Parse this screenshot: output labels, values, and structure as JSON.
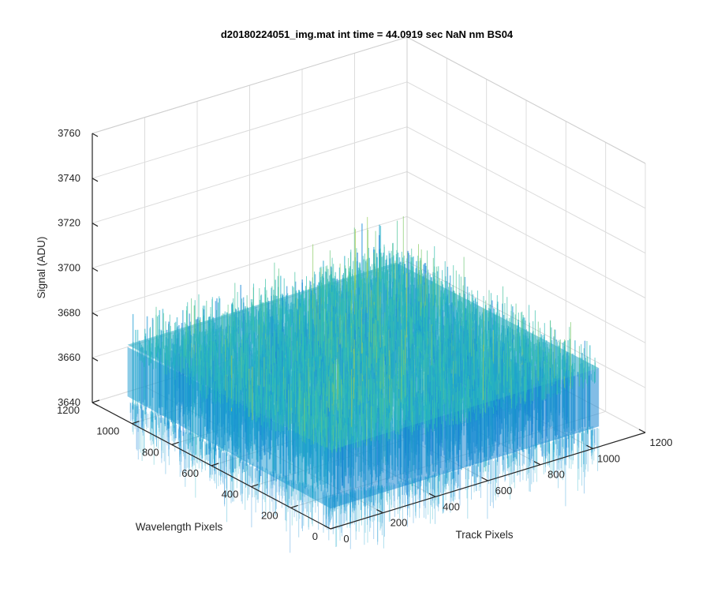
{
  "chart_data": {
    "type": "surface",
    "title": "d20180224051_img.mat int time = 44.0919 sec  NaN nm BS04",
    "xlabel": "Track Pixels",
    "ylabel": "Wavelength Pixels",
    "zlabel": "Signal (ADU)",
    "xlim": [
      0,
      1200
    ],
    "ylim": [
      0,
      1200
    ],
    "zlim": [
      3640,
      3760
    ],
    "x_ticks": [
      "0",
      "200",
      "400",
      "600",
      "800",
      "1000",
      "1200"
    ],
    "y_ticks": [
      "0",
      "200",
      "400",
      "600",
      "800",
      "1000",
      "1200"
    ],
    "z_ticks": [
      "3640",
      "3660",
      "3680",
      "3700",
      "3720",
      "3740",
      "3760"
    ],
    "data_extent": {
      "x": [
        1,
        1024
      ],
      "y": [
        1,
        1024
      ]
    },
    "approx_mean_signal": 3665,
    "grid": true,
    "colormap": "parula",
    "colors": {
      "low": "#0f6fd9",
      "mid": "#1fb0c0",
      "high": "#c8cf3a"
    }
  }
}
